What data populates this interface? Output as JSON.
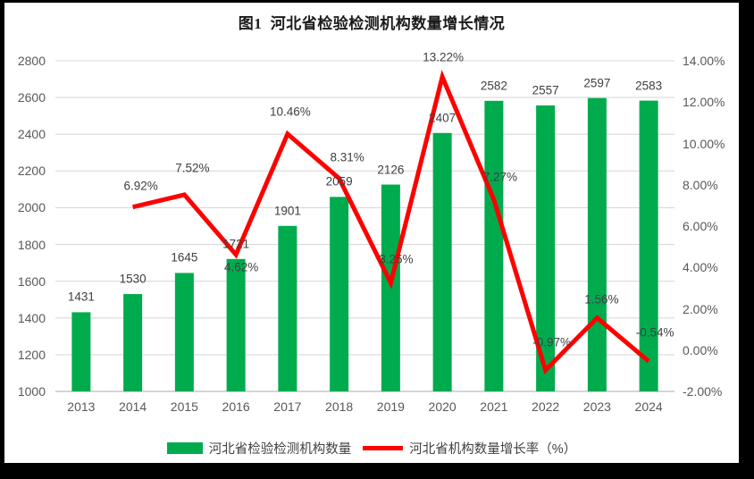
{
  "page": {
    "background": "#000000"
  },
  "chart": {
    "background": "#ffffff"
  },
  "chart_data": {
    "type": "combo-bar-line",
    "title": "图1  河北省检验检测机构数量增长情况",
    "categories": [
      "2013",
      "2014",
      "2015",
      "2016",
      "2017",
      "2018",
      "2019",
      "2020",
      "2021",
      "2022",
      "2023",
      "2024"
    ],
    "series": [
      {
        "name": "河北省检验检测机构数量",
        "type": "bar",
        "axis": "left",
        "color": "#00AB4E",
        "values": [
          1431,
          1530,
          1645,
          1721,
          1901,
          2059,
          2126,
          2407,
          2582,
          2557,
          2597,
          2583
        ],
        "labels": [
          "1431",
          "1530",
          "1645",
          "1721",
          "1901",
          "2059",
          "2126",
          "2407",
          "2582",
          "2557",
          "2597",
          "2583"
        ]
      },
      {
        "name": "河北省机构数量增长率（%）",
        "type": "line",
        "axis": "right",
        "color": "#FE0000",
        "start_index": 1,
        "values": [
          6.92,
          7.52,
          4.62,
          10.46,
          8.31,
          3.25,
          13.22,
          7.27,
          -0.97,
          1.56,
          -0.54
        ],
        "labels": [
          "6.92%",
          "7.52%",
          "4.62%",
          "10.46%",
          "8.31%",
          "3.25%",
          "13.22%",
          "7.27%",
          "-0.97%",
          "1.56%",
          "-0.54%"
        ],
        "label_dx": [
          9,
          9,
          6,
          3,
          9,
          6,
          1,
          7,
          7,
          5,
          7
        ],
        "label_dy": [
          -24,
          -30,
          14,
          -25,
          -24,
          -27,
          -22,
          -26,
          -31,
          -21,
          -32
        ]
      }
    ],
    "left_axis": {
      "min": 1000,
      "max": 2800,
      "step": 200,
      "ticks": [
        "2800",
        "2600",
        "2400",
        "2200",
        "2000",
        "1800",
        "1600",
        "1400",
        "1200",
        "1000"
      ]
    },
    "right_axis": {
      "min": -2,
      "max": 14,
      "step": 2,
      "ticks": [
        "14.00%",
        "12.00%",
        "10.00%",
        "8.00%",
        "6.00%",
        "4.00%",
        "2.00%",
        "0.00%",
        "-2.00%"
      ]
    },
    "grid": true,
    "gridline_color": "#D9D9D9",
    "baseline_color": "#C6C6C6",
    "tick_color": "#595959",
    "label_color": "#404040",
    "legend_position": "bottom"
  }
}
